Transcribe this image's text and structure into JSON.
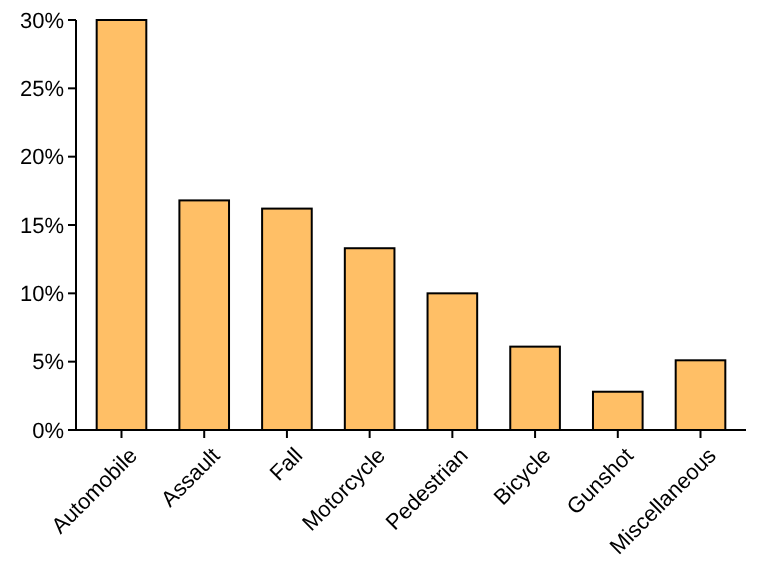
{
  "chart_data": {
    "type": "bar",
    "categories": [
      "Automobile",
      "Assault",
      "Fall",
      "Motorcycle",
      "Pedestrian",
      "Bicycle",
      "Gunshot",
      "Miscellaneous"
    ],
    "values": [
      30,
      16.8,
      16.2,
      13.3,
      10,
      6.1,
      2.8,
      5.1
    ],
    "color": "#ffbf66",
    "ylim": [
      0,
      30
    ],
    "yticks": [
      {
        "value": 0,
        "label": "0%"
      },
      {
        "value": 5,
        "label": "5%"
      },
      {
        "value": 10,
        "label": "10%"
      },
      {
        "value": 15,
        "label": "15%"
      },
      {
        "value": 20,
        "label": "20%"
      },
      {
        "value": 25,
        "label": "25%"
      },
      {
        "value": 30,
        "label": "30%"
      }
    ],
    "grid": false
  }
}
